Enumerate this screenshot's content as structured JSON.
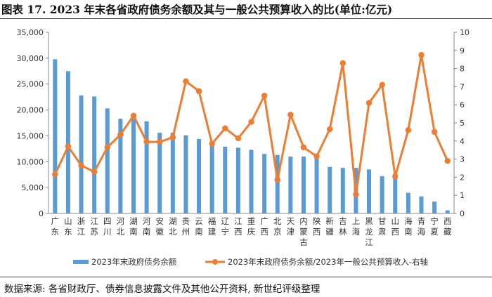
{
  "title": "图表 17.  2023 年末各省政府债务余额及其与一般公共预算收入的比(单位:亿元)",
  "source": "数据来源: 各省财政厅、债券信息披露文件及其他公开资料, 新世纪评级整理",
  "colors": {
    "bar": "#5b9bd5",
    "line": "#ed7d31",
    "axis": "#888888",
    "text": "#333333"
  },
  "chart_data": {
    "type": "bar",
    "categories": [
      "广东",
      "山东",
      "浙江",
      "江苏",
      "四川",
      "河北",
      "湖南",
      "河南",
      "安徽",
      "湖北",
      "贵州",
      "云南",
      "福建",
      "辽宁",
      "江西",
      "重庆",
      "广西",
      "北京",
      "天津",
      "内蒙古",
      "陕西",
      "新疆",
      "吉林",
      "上海",
      "黑龙江",
      "甘肃",
      "山西",
      "海南",
      "青海",
      "宁夏",
      "西藏"
    ],
    "category_lines": [
      [
        "广",
        "东"
      ],
      [
        "山",
        "东"
      ],
      [
        "浙",
        "江"
      ],
      [
        "江",
        "苏"
      ],
      [
        "四",
        "川"
      ],
      [
        "河",
        "北"
      ],
      [
        "湖",
        "南"
      ],
      [
        "河",
        "南"
      ],
      [
        "安",
        "徽"
      ],
      [
        "湖",
        "北"
      ],
      [
        "贵",
        "州"
      ],
      [
        "云",
        "南"
      ],
      [
        "福",
        "建"
      ],
      [
        "辽",
        "宁"
      ],
      [
        "江",
        "西"
      ],
      [
        "重",
        "庆"
      ],
      [
        "广",
        "西"
      ],
      [
        "北",
        "京"
      ],
      [
        "天",
        "津"
      ],
      [
        "内",
        "蒙",
        "古"
      ],
      [
        "陕",
        "西"
      ],
      [
        "新",
        "疆"
      ],
      [
        "吉",
        "林"
      ],
      [
        "上",
        "海"
      ],
      [
        "黑",
        "龙",
        "江"
      ],
      [
        "甘",
        "肃"
      ],
      [
        "山",
        "西"
      ],
      [
        "海",
        "南"
      ],
      [
        "青",
        "海"
      ],
      [
        "宁",
        "夏"
      ],
      [
        "西",
        "藏"
      ]
    ],
    "series": [
      {
        "name": "2023年末政府债务余额",
        "type": "bar",
        "axis": "left",
        "values": [
          29800,
          27500,
          22800,
          22600,
          20300,
          18300,
          18300,
          17800,
          15600,
          15600,
          15100,
          14400,
          13300,
          12900,
          12700,
          12300,
          11500,
          11300,
          11000,
          11000,
          10900,
          9000,
          8800,
          8800,
          8500,
          7200,
          6900,
          4000,
          3300,
          2300,
          600
        ]
      },
      {
        "name": "2023年末政府债务余额/2023年一般公共预算收入-右轴",
        "type": "line",
        "axis": "right",
        "values": [
          2.15,
          3.7,
          2.65,
          2.3,
          3.65,
          4.35,
          5.4,
          3.95,
          3.95,
          4.2,
          7.3,
          6.75,
          3.85,
          4.7,
          4.15,
          5.05,
          6.5,
          1.85,
          5.45,
          3.65,
          3.15,
          4.65,
          8.3,
          1.05,
          6.1,
          7.1,
          2.05,
          4.6,
          8.75,
          4.5,
          2.9
        ]
      }
    ],
    "left_axis": {
      "min": 0,
      "max": 35000,
      "ticks": [
        "0",
        "5,000",
        "10,000",
        "15,000",
        "20,000",
        "25,000",
        "30,000",
        "35,000"
      ]
    },
    "right_axis": {
      "min": 0,
      "max": 10,
      "ticks": [
        "0",
        "1",
        "2",
        "3",
        "4",
        "5",
        "6",
        "7",
        "8",
        "9",
        "10"
      ]
    },
    "gridlines": false,
    "legend_position": "bottom"
  }
}
